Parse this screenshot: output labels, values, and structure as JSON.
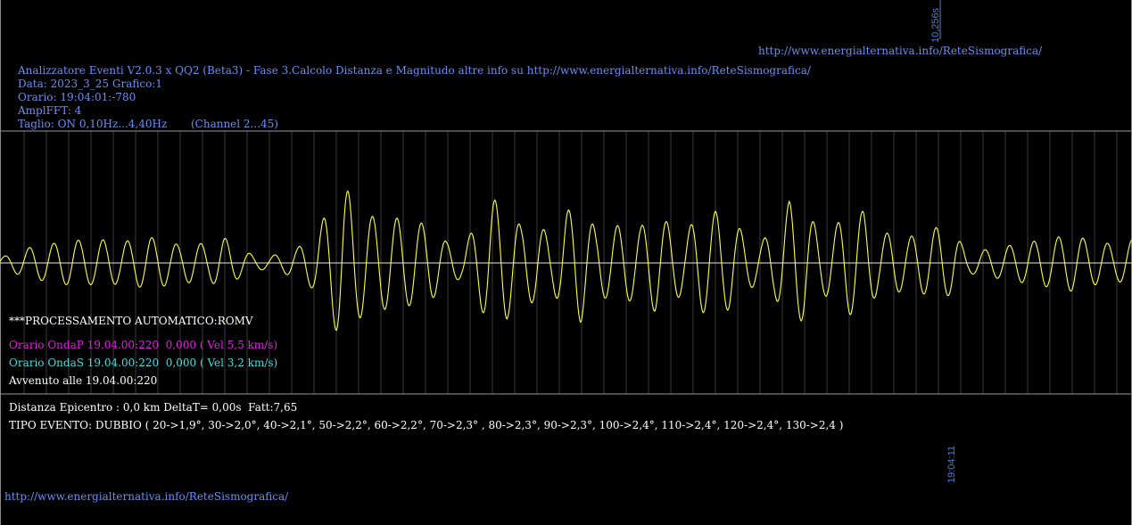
{
  "header": {
    "top_url": "http://www.energialternativa.info/ReteSismografica/",
    "scale_label": "10,256s",
    "lines": [
      "Analizzatore Eventi V2.0.3 x QQ2 (Beta3) - Fase 3.Calcolo Distanza e Magnitudo altre info su http://www.energialternativa.info/ReteSismografica/",
      "Data: 2023_3_25 Grafico:1",
      "Orario: 19:04:01:-780",
      "AmplFFT: 4",
      "Taglio: ON 0,10Hz...4,40Hz       (Channel 2...45)"
    ]
  },
  "processing": {
    "title": "***PROCESSAMENTO AUTOMATICO:ROMV",
    "onda_p": "Orario OndaP 19.04.00:220  0,000 ( Vel 5,5 km/s)",
    "onda_s": "Orario OndaS 19.04.00:220  0,000 ( Vel 3,2 km/s)",
    "avvenuto": "Avvenuto alle 19.04.00:220"
  },
  "results": {
    "distanza": "Distanza Epicentro : 0,0 km DeltaT= 0,00s  Fatt:7,65",
    "tipo_evento": "TIPO EVENTO: DUBBIO ( 20->1,9°, 30->2,0°, 40->2,1°, 50->2,2°, 60->2,2°, 70->2,3° , 80->2,3°, 90->2,3°, 100->2,4°, 110->2,4°, 120->2,4°, 130->2,4 )"
  },
  "footer": {
    "url": "http://www.energialternativa.info/ReteSismografica/",
    "time_label": "19:04:11"
  },
  "colors": {
    "background": "#000000",
    "trace": "#ffff40",
    "text_blue": "#6d8ff0",
    "grid": "#3a3a3a",
    "border": "#9a9a9a",
    "onda_p": "#e020e0",
    "onda_s": "#40e0e0"
  },
  "chart_data": {
    "type": "line",
    "title": "",
    "xlabel": "",
    "ylabel": "",
    "grid": true,
    "series": [
      {
        "values": [
          0.1,
          0.2,
          0.3,
          0.35,
          0.4,
          0.45,
          0.42,
          0.45,
          0.4,
          0.45,
          0.5,
          0.45,
          0.35,
          0.4,
          0.35,
          0.5,
          0.3,
          0.15,
          0.12,
          0.2,
          0.3,
          0.5,
          1.0,
          1.55,
          1.1,
          0.9,
          0.9,
          0.85,
          0.8,
          0.7,
          0.4,
          0.3,
          0.75,
          1.25,
          1.1,
          0.7,
          0.8,
          0.5,
          1.0,
          1.15,
          0.65,
          0.7,
          0.75,
          0.7,
          0.95,
          0.75,
          0.6,
          0.95,
          1.0,
          0.9,
          0.55,
          0.4,
          0.65,
          1.2,
          1.1,
          0.6,
          0.7,
          1.0,
          1.0,
          0.55,
          0.6,
          0.5,
          0.6,
          0.7,
          0.6,
          0.2,
          0.25,
          0.3,
          0.35,
          0.4,
          0.45,
          0.5,
          0.55,
          0.45,
          0.4,
          0.35,
          0.45
        ],
        "cycle_phases": [
          0,
          0.6,
          1.2,
          1.9,
          2.5,
          3.1,
          3.7,
          4.3,
          4.9,
          5.6,
          6.2,
          6.7,
          7.3,
          7.9,
          8.5,
          9.1,
          9.7,
          10.3,
          11.0,
          11.6,
          12.2,
          12.8,
          13.4,
          13.9,
          14.6,
          15.2,
          15.7,
          16.3,
          16.9,
          17.6,
          18.2,
          18.8,
          19.4,
          20.0,
          20.6,
          21.2,
          21.8,
          22.4,
          23.0,
          23.6,
          24.2,
          24.8,
          25.4,
          26.0,
          26.6,
          27.2,
          27.8,
          28.4,
          29.0,
          29.6,
          30.2,
          30.8,
          31.4,
          32.0,
          32.6,
          33.2,
          33.8,
          34.4,
          35.0,
          35.6,
          36.2,
          36.8,
          37.4,
          38.0,
          38.6,
          39.2,
          39.8,
          40.4,
          41.0,
          41.6,
          42.2,
          42.8,
          43.4,
          44.0,
          44.6,
          45.2,
          45.8
        ]
      }
    ]
  }
}
